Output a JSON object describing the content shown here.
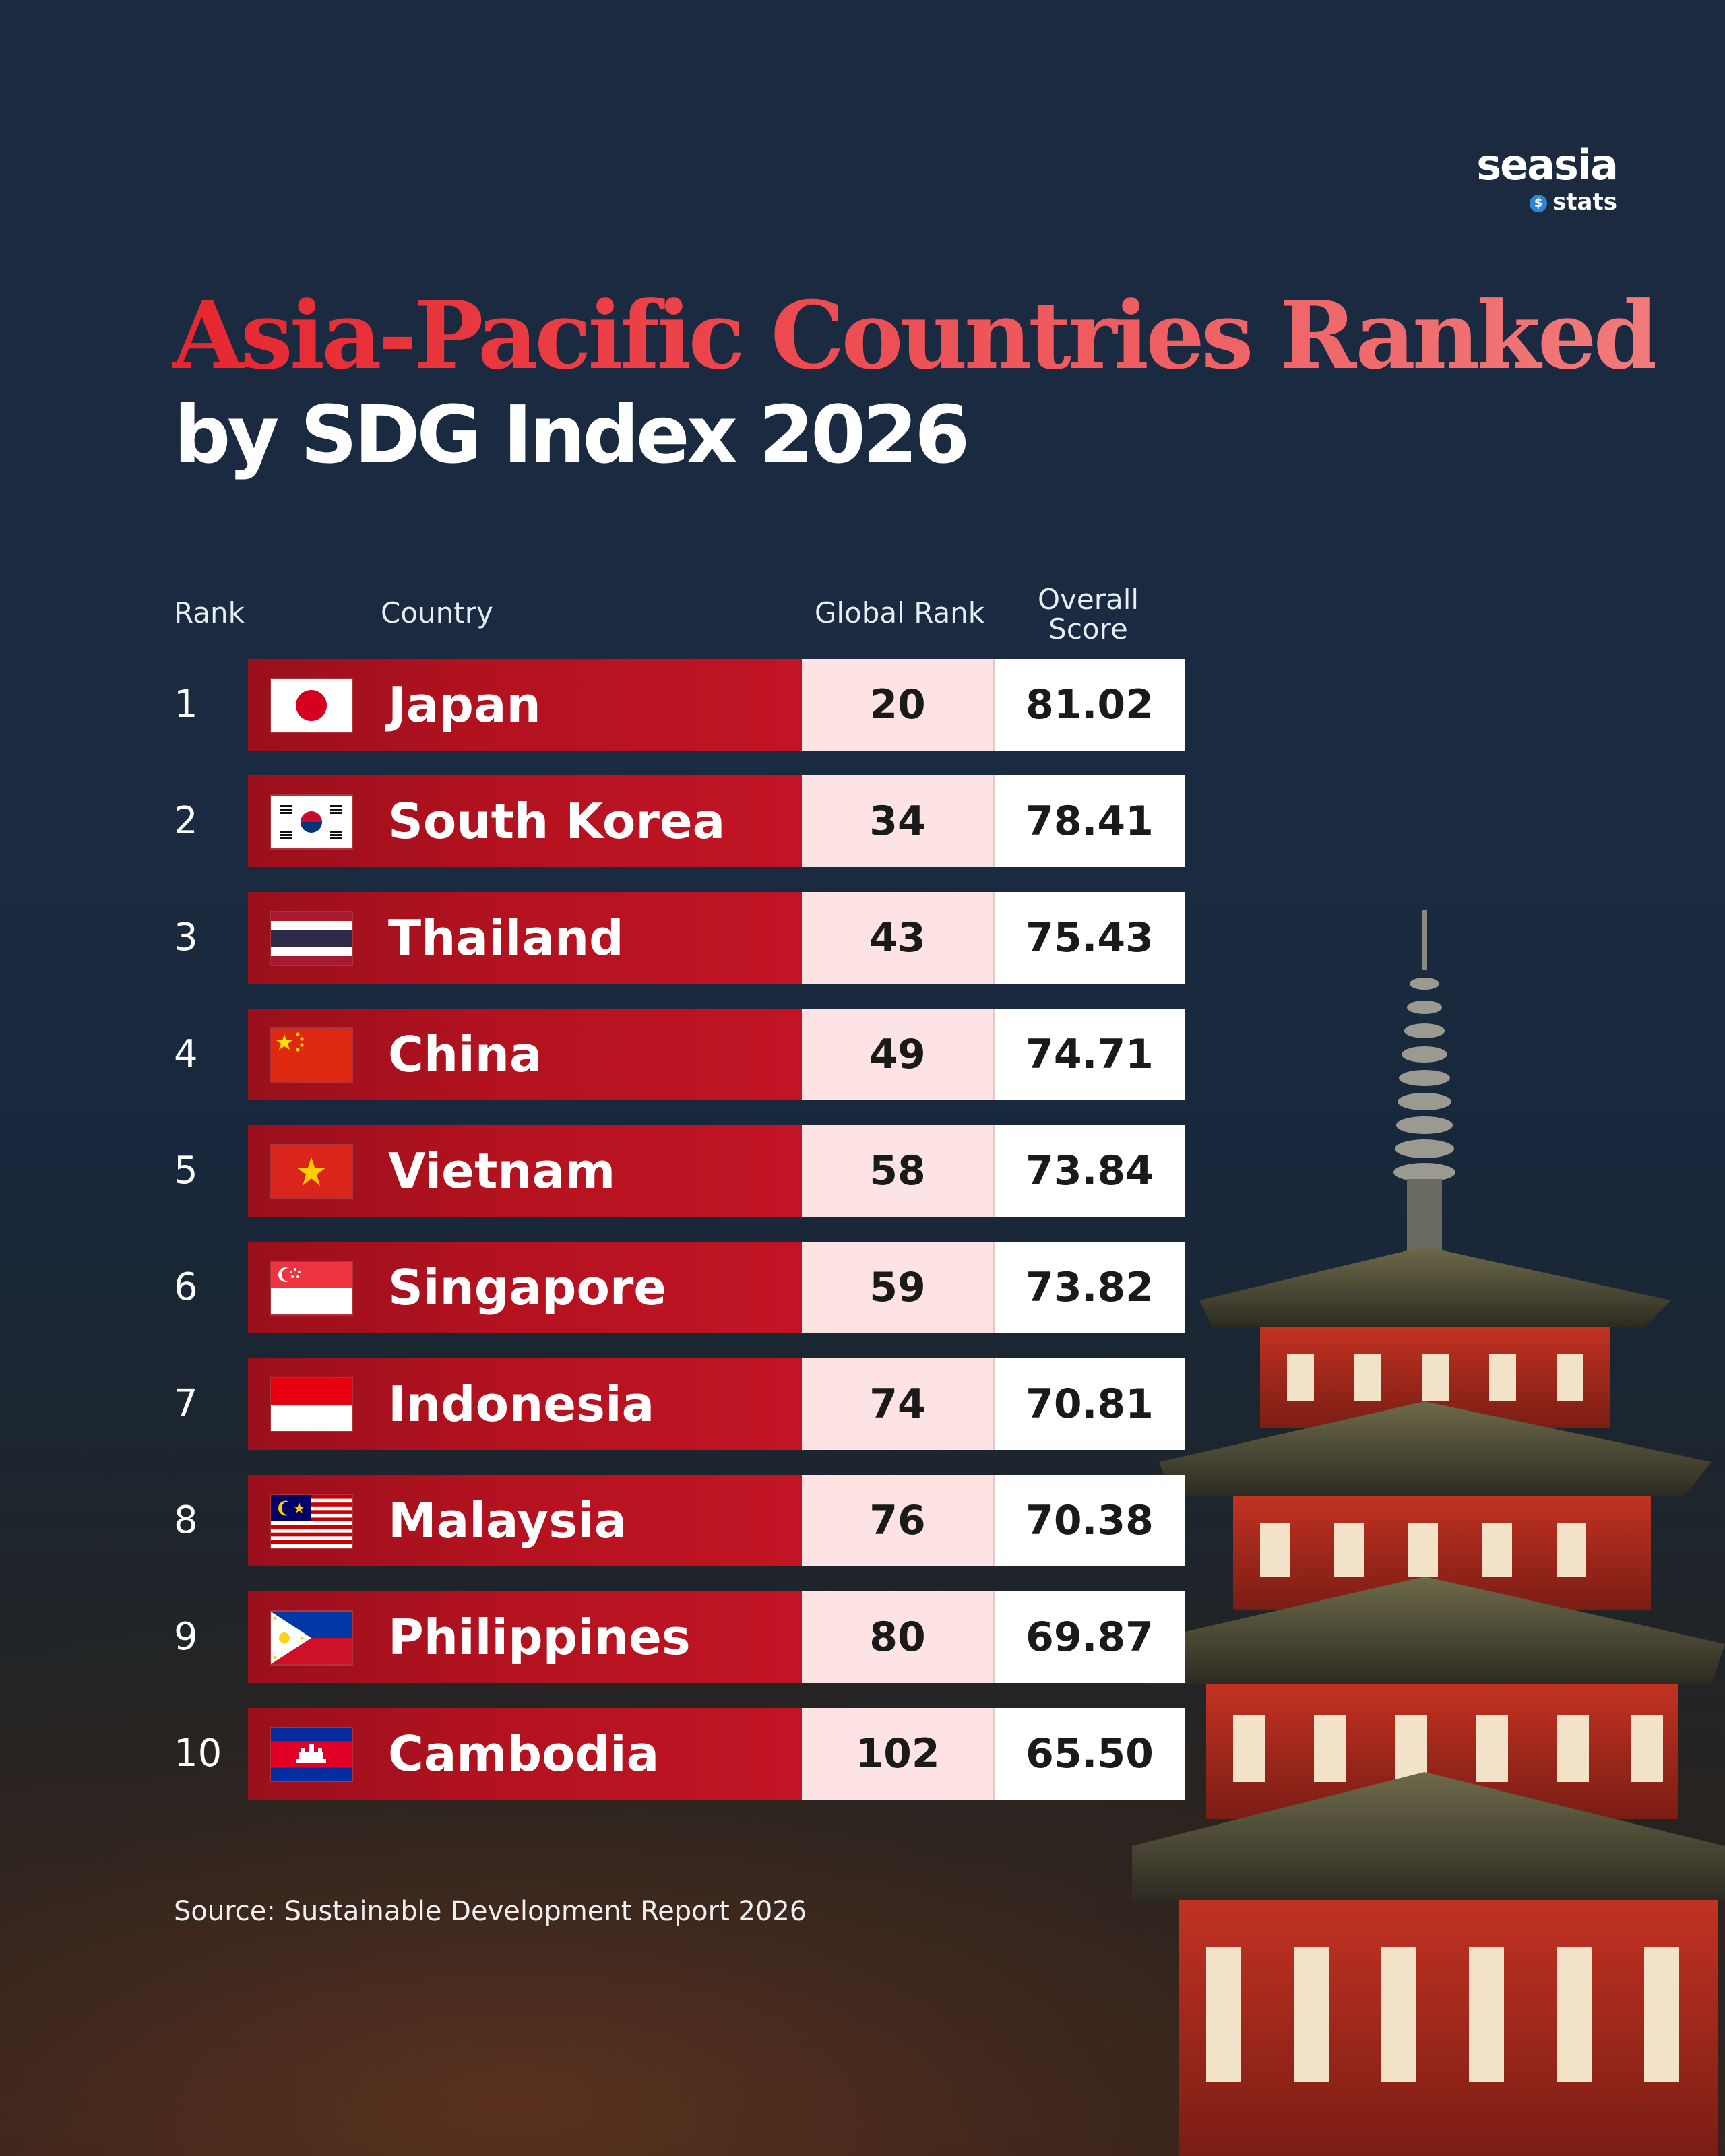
{
  "brand": {
    "name": "seasia",
    "sub": "stats",
    "dot": "$"
  },
  "title": {
    "line1": "Asia-Pacific Countries Ranked",
    "line2": "by SDG Index 2026"
  },
  "headers": {
    "rank": "Rank",
    "country": "Country",
    "global_rank": "Global Rank",
    "score_line1": "Overall",
    "score_line2": "Score"
  },
  "source": "Source: Sustainable Development Report 2026",
  "colors": {
    "title_red": "#e8343d",
    "row_red": "#b3121f",
    "global_bg": "#fde3e3",
    "score_bg": "#ffffff"
  },
  "chart_data": {
    "type": "table",
    "columns": [
      "Rank",
      "Country",
      "Global Rank",
      "Overall Score"
    ],
    "rows": [
      {
        "rank": "1",
        "country": "Japan",
        "flag": "japan-flag-icon",
        "global_rank": "20",
        "score": "81.02"
      },
      {
        "rank": "2",
        "country": "South Korea",
        "flag": "south-korea-flag-icon",
        "global_rank": "34",
        "score": "78.41"
      },
      {
        "rank": "3",
        "country": "Thailand",
        "flag": "thailand-flag-icon",
        "global_rank": "43",
        "score": "75.43"
      },
      {
        "rank": "4",
        "country": "China",
        "flag": "china-flag-icon",
        "global_rank": "49",
        "score": "74.71"
      },
      {
        "rank": "5",
        "country": "Vietnam",
        "flag": "vietnam-flag-icon",
        "global_rank": "58",
        "score": "73.84"
      },
      {
        "rank": "6",
        "country": "Singapore",
        "flag": "singapore-flag-icon",
        "global_rank": "59",
        "score": "73.82"
      },
      {
        "rank": "7",
        "country": "Indonesia",
        "flag": "indonesia-flag-icon",
        "global_rank": "74",
        "score": "70.81"
      },
      {
        "rank": "8",
        "country": "Malaysia",
        "flag": "malaysia-flag-icon",
        "global_rank": "76",
        "score": "70.38"
      },
      {
        "rank": "9",
        "country": "Philippines",
        "flag": "philippines-flag-icon",
        "global_rank": "80",
        "score": "69.87"
      },
      {
        "rank": "10",
        "country": "Cambodia",
        "flag": "cambodia-flag-icon",
        "global_rank": "102",
        "score": "65.50"
      }
    ]
  }
}
